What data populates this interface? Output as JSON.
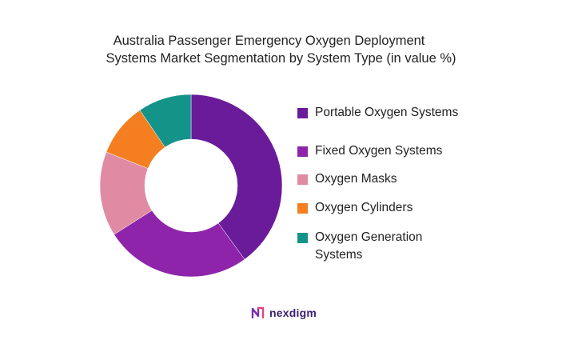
{
  "title_line1": "Australia Passenger Emergency Oxygen Deployment",
  "title_line2": "Systems Market Segmentation by System Type (in value %)",
  "chart_data": {
    "type": "pie",
    "title": "Australia Passenger Emergency Oxygen Deployment Systems Market Segmentation by System Type (in value %)",
    "donut": true,
    "categories": [
      "Portable Oxygen Systems",
      "Fixed Oxygen Systems",
      "Oxygen Masks",
      "Oxygen Cylinders",
      "Oxygen Generation Systems"
    ],
    "values": [
      40,
      26,
      15,
      9.5,
      9.5
    ],
    "colors": [
      "#6a1b9a",
      "#8e24aa",
      "#e08aa3",
      "#f57f20",
      "#149488"
    ],
    "legend_placement": "right"
  },
  "legend": [
    {
      "label": "Portable Oxygen Systems",
      "color": "#6a1b9a"
    },
    {
      "label": "Fixed Oxygen Systems",
      "color": "#8e24aa"
    },
    {
      "label": "Oxygen Masks",
      "color": "#e08aa3"
    },
    {
      "label": "Oxygen Cylinders",
      "color": "#f57f20"
    },
    {
      "label": "Oxygen Generation Systems",
      "color": "#149488"
    }
  ],
  "brand": {
    "name": "nexdigm",
    "icon": "nexdigm-logo-icon"
  }
}
